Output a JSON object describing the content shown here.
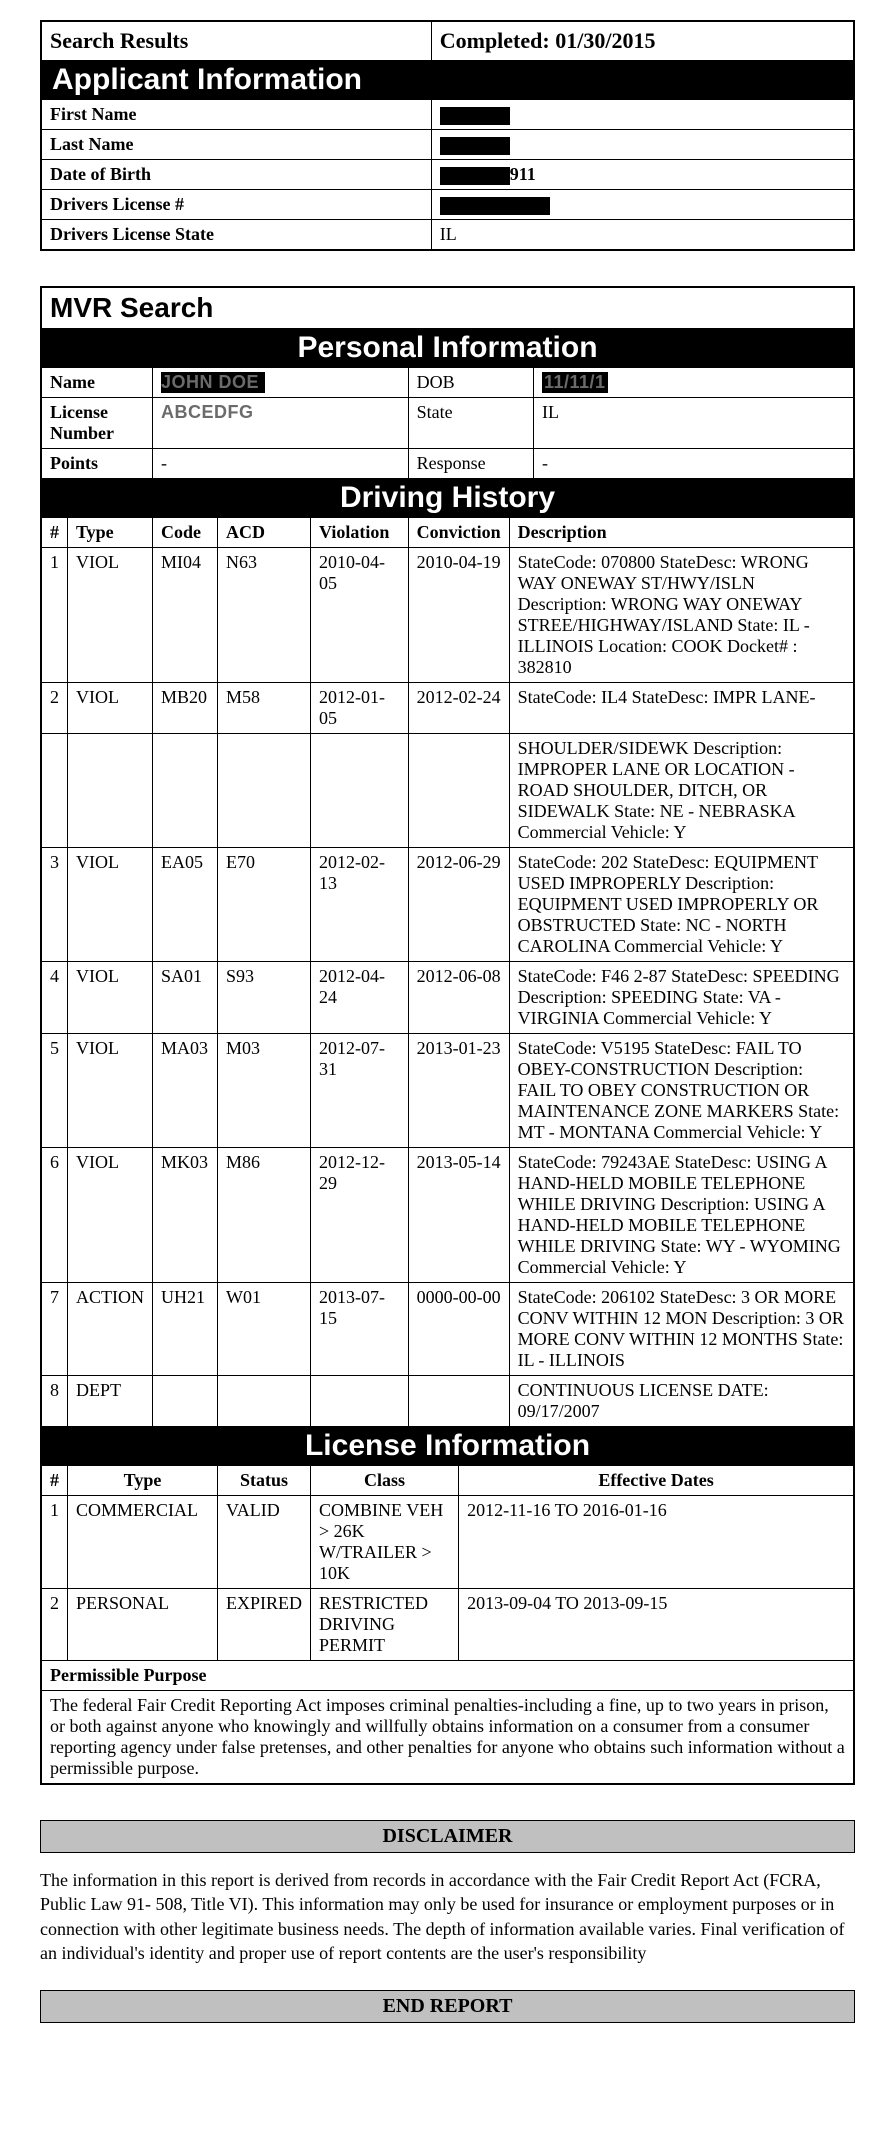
{
  "searchResults": {
    "searchResultsLabel": "Search Results",
    "completedLabel": "Completed:",
    "completedDate": "01/30/2015"
  },
  "applicantInfo": {
    "heading": "Applicant Information",
    "labels": {
      "firstName": "First Name",
      "lastName": "Last Name",
      "dob": "Date of Birth",
      "licenseNum": "Drivers License #",
      "licenseState": "Drivers License State"
    },
    "values": {
      "dobSuffix": "911",
      "licenseState": "IL"
    }
  },
  "mvr": {
    "heading": "MVR Search",
    "personalHeading": "Personal Information",
    "labels": {
      "name": "Name",
      "dob": "DOB",
      "licenseNumber": "License Number",
      "state": "State",
      "points": "Points",
      "response": "Response"
    },
    "values": {
      "nameGrey": "JOHN DOE",
      "dobGrey": "11/11/1",
      "licenseGrey": "ABCEDFG",
      "state": "IL",
      "points": "-",
      "response": "-"
    }
  },
  "drivingHistory": {
    "heading": "Driving History",
    "columns": {
      "num": "#",
      "type": "Type",
      "code": "Code",
      "acd": "ACD",
      "violation": "Violation",
      "conviction": "Conviction",
      "description": "Description"
    },
    "rows": [
      {
        "num": "1",
        "type": "VIOL",
        "code": "MI04",
        "acd": "N63",
        "violation": "2010-04-05",
        "conviction": "2010-04-19",
        "description": " StateCode: 070800 StateDesc: WRONG WAY ONEWAY ST/HWY/ISLN Description: WRONG WAY ONEWAY STREE/HIGHWAY/ISLAND State: IL - ILLINOIS Location: COOK Docket# : 382810"
      },
      {
        "num": "2",
        "type": "VIOL",
        "code": "MB20",
        "acd": "M58",
        "violation": "2012-01-05",
        "conviction": "2012-02-24",
        "description": " StateCode: IL4 StateDesc: IMPR LANE-"
      },
      {
        "num": "",
        "type": "",
        "code": "",
        "acd": "",
        "violation": "",
        "conviction": "",
        "description": "SHOULDER/SIDEWK Description: IMPROPER LANE OR LOCATION - ROAD SHOULDER, DITCH, OR SIDEWALK State: NE - NEBRASKA Commercial Vehicle: Y"
      },
      {
        "num": "3",
        "type": "VIOL",
        "code": "EA05",
        "acd": "E70",
        "violation": "2012-02-13",
        "conviction": "2012-06-29",
        "description": " StateCode: 202 StateDesc: EQUIPMENT USED IMPROPERLY Description: EQUIPMENT USED IMPROPERLY OR OBSTRUCTED State: NC - NORTH CAROLINA Commercial Vehicle: Y"
      },
      {
        "num": "4",
        "type": "VIOL",
        "code": "SA01",
        "acd": "S93",
        "violation": "2012-04-24",
        "conviction": "2012-06-08",
        "description": " StateCode: F46 2-87 StateDesc: SPEEDING Description: SPEEDING State: VA - VIRGINIA Commercial Vehicle: Y"
      },
      {
        "num": "5",
        "type": "VIOL",
        "code": "MA03",
        "acd": "M03",
        "violation": "2012-07-31",
        "conviction": "2013-01-23",
        "description": " StateCode: V5195 StateDesc: FAIL TO OBEY-CONSTRUCTION Description: FAIL TO OBEY CONSTRUCTION OR MAINTENANCE ZONE MARKERS State: MT - MONTANA Commercial Vehicle: Y"
      },
      {
        "num": "6",
        "type": "VIOL",
        "code": "MK03",
        "acd": "M86",
        "violation": "2012-12-29",
        "conviction": "2013-05-14",
        "description": " StateCode: 79243AE StateDesc: USING A HAND-HELD MOBILE TELEPHONE WHILE DRIVING Description: USING A HAND-HELD MOBILE TELEPHONE WHILE DRIVING State: WY - WYOMING Commercial Vehicle: Y"
      },
      {
        "num": "7",
        "type": "ACTION",
        "code": "UH21",
        "acd": "W01",
        "violation": "2013-07-15",
        "conviction": "0000-00-00",
        "description": " StateCode: 206102 StateDesc: 3 OR MORE CONV WITHIN 12 MON Description: 3 OR MORE CONV WITHIN 12 MONTHS State: IL - ILLINOIS"
      },
      {
        "num": "8",
        "type": "DEPT",
        "code": "",
        "acd": "",
        "violation": "",
        "conviction": "",
        "description": " CONTINUOUS LICENSE DATE: 09/17/2007"
      }
    ]
  },
  "licenseInfo": {
    "heading": "License Information",
    "columns": {
      "num": "#",
      "type": "Type",
      "status": "Status",
      "class": "Class",
      "dates": "Effective Dates"
    },
    "rows": [
      {
        "num": "1",
        "type": "COMMERCIAL",
        "status": "VALID",
        "class": "COMBINE VEH > 26K W/TRAILER > 10K",
        "dates": "2012-11-16 TO 2016-01-16"
      },
      {
        "num": "2",
        "type": "PERSONAL",
        "status": "EXPIRED",
        "class": "RESTRICTED DRIVING PERMIT",
        "dates": "2013-09-04 TO 2013-09-15"
      }
    ],
    "permissiblePurposeLabel": "Permissible Purpose",
    "permissiblePurposeText": "The federal Fair Credit Reporting Act imposes criminal penalties-including a fine, up to two years in prison, or both against anyone who knowingly and willfully obtains information on a consumer from a consumer reporting agency under false pretenses, and other penalties for anyone who obtains such information without a permissible purpose."
  },
  "disclaimer": {
    "heading": "DISCLAIMER",
    "text": "The information in this report is derived from records in accordance with the Fair Credit Report Act (FCRA, Public Law 91- 508, Title VI). This information may only be used for insurance or employment purposes or in connection with other legitimate business needs. The depth of information available varies. Final verification of an individual's identity and proper use of report contents are the user's responsibility"
  },
  "endReport": "END REPORT"
}
